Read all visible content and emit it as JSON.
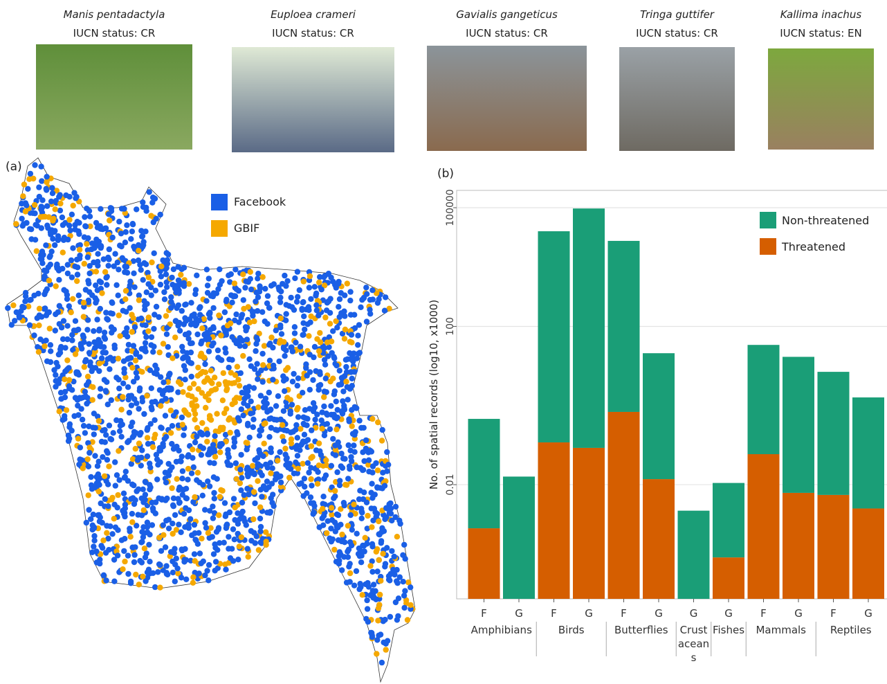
{
  "photos": [
    {
      "species": "Manis pentadactyla",
      "status": "IUCN status: CR"
    },
    {
      "species": "Euploea crameri",
      "status": "IUCN status: CR"
    },
    {
      "species": "Gavialis gangeticus",
      "status": "IUCN status: CR"
    },
    {
      "species": "Tringa guttifer",
      "status": "IUCN status: CR"
    },
    {
      "species": "Kallima inachus",
      "status": "IUCN status: EN"
    }
  ],
  "chart_data": [
    {
      "type": "map",
      "panel_label": "(a)",
      "series": [
        {
          "name": "Facebook",
          "color": "#1a5fe6"
        },
        {
          "name": "GBIF",
          "color": "#f5a800"
        }
      ]
    },
    {
      "type": "bar",
      "panel_label": "(b)",
      "y_label": "No. of spatial records (log10, x1000)",
      "stacked": true,
      "log_scale": true,
      "categories": [
        "F",
        "G",
        "F",
        "G",
        "F",
        "G",
        "G",
        "G",
        "F",
        "G",
        "F",
        "G"
      ],
      "groups": [
        "Amphibians",
        "Amphibians",
        "Birds",
        "Birds",
        "Butterflies",
        "Butterflies",
        "Crustaceans",
        "Fishes",
        "Mammals",
        "Mammals",
        "Reptiles",
        "Reptiles"
      ],
      "series": [
        {
          "name": "Threatened",
          "color": "#d55e00",
          "values": [
            0.00079,
            null,
            0.117,
            0.085,
            0.69,
            0.0138,
            null,
            0.000145,
            0.059,
            0.0062,
            0.0055,
            0.0025
          ]
        },
        {
          "name": "Non-threatened",
          "color": "#1a9e77",
          "values": [
            0.459,
            0.016,
            25400,
            95500,
            14500,
            21,
            0.0022,
            0.0109,
            34,
            17,
            7.1,
            1.6
          ]
        }
      ],
      "ylim": [
        1.3e-05,
        274000
      ],
      "yticks": [
        0.01,
        100,
        100000
      ],
      "grid": true,
      "legend": "top-right"
    }
  ]
}
